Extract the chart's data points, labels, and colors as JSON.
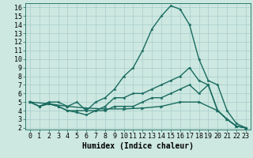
{
  "xlabel": "Humidex (Indice chaleur)",
  "bg_color": "#cce8e0",
  "grid_color": "#aacccc",
  "line_color": "#1a6b60",
  "xlim": [
    -0.5,
    23.5
  ],
  "ylim": [
    1.8,
    16.5
  ],
  "xticks": [
    0,
    1,
    2,
    3,
    4,
    5,
    6,
    7,
    8,
    9,
    10,
    11,
    12,
    13,
    14,
    15,
    16,
    17,
    18,
    19,
    20,
    21,
    22,
    23
  ],
  "yticks": [
    2,
    3,
    4,
    5,
    6,
    7,
    8,
    9,
    10,
    11,
    12,
    13,
    14,
    15,
    16
  ],
  "line1_x": [
    0,
    1,
    2,
    3,
    4,
    5,
    6,
    7,
    8,
    9,
    10,
    11,
    12,
    13,
    14,
    15,
    16,
    17,
    18,
    19,
    20,
    21,
    22,
    23
  ],
  "line1_y": [
    5,
    4.5,
    5,
    5,
    4.5,
    5,
    4,
    5,
    5.5,
    6.5,
    8,
    9,
    11,
    13.5,
    15,
    16.2,
    15.8,
    14,
    10,
    7.5,
    7,
    4,
    2.5,
    2
  ],
  "line2_x": [
    0,
    1,
    2,
    3,
    4,
    5,
    6,
    7,
    8,
    9,
    10,
    11,
    12,
    13,
    14,
    15,
    16,
    17,
    18,
    19,
    20,
    21,
    22,
    23
  ],
  "line2_y": [
    5,
    4.5,
    4.8,
    4.5,
    4,
    4,
    4,
    4,
    4.5,
    5.5,
    5.5,
    6,
    6,
    6.5,
    7,
    7.5,
    8,
    9,
    7.5,
    7,
    4,
    3,
    2.2,
    2
  ],
  "line3_x": [
    0,
    1,
    2,
    3,
    4,
    5,
    6,
    7,
    8,
    9,
    10,
    11,
    12,
    13,
    14,
    15,
    16,
    17,
    18,
    19,
    20,
    21,
    22,
    23
  ],
  "line3_y": [
    5,
    4.5,
    4.8,
    4.5,
    4,
    3.8,
    3.5,
    4,
    4,
    4.5,
    4.5,
    4.5,
    5,
    5.5,
    5.5,
    6,
    6.5,
    7,
    6,
    7,
    4,
    3,
    2.2,
    2
  ],
  "line4_x": [
    0,
    2,
    4,
    6,
    8,
    10,
    12,
    14,
    16,
    18,
    20,
    21,
    22,
    23
  ],
  "line4_y": [
    5,
    4.8,
    4.5,
    4.3,
    4.2,
    4.2,
    4.3,
    4.5,
    5,
    5,
    4,
    3,
    2.2,
    2
  ],
  "marker_size": 2.5,
  "line_width": 1.0,
  "font_size_tick": 6,
  "font_size_label": 7
}
